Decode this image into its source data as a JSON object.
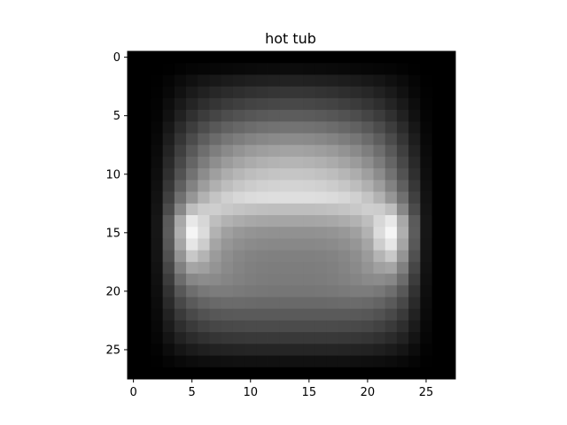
{
  "chart_data": {
    "type": "heatmap",
    "title": "hot tub",
    "colormap": "gray",
    "grid": false,
    "rows": 28,
    "cols": 28,
    "x_ticks": [
      0,
      5,
      10,
      15,
      20,
      25
    ],
    "y_ticks": [
      0,
      5,
      10,
      15,
      20,
      25
    ],
    "xlim": [
      -0.5,
      27.5
    ],
    "ylim": [
      27.5,
      -0.5
    ],
    "vmin": 0,
    "vmax": 255,
    "values": [
      [
        0,
        0,
        0,
        0,
        0,
        0,
        0,
        0,
        0,
        0,
        0,
        0,
        0,
        0,
        0,
        0,
        0,
        0,
        0,
        0,
        0,
        0,
        0,
        0,
        0,
        0,
        0,
        0
      ],
      [
        0,
        0,
        0,
        1,
        3,
        5,
        6,
        7,
        8,
        9,
        10,
        11,
        11,
        12,
        12,
        11,
        11,
        10,
        9,
        8,
        7,
        6,
        5,
        3,
        1,
        0,
        0,
        0
      ],
      [
        0,
        0,
        1,
        5,
        11,
        16,
        21,
        24,
        27,
        29,
        31,
        32,
        33,
        34,
        34,
        33,
        32,
        31,
        29,
        27,
        24,
        21,
        16,
        11,
        5,
        1,
        0,
        0
      ],
      [
        0,
        0,
        2,
        8,
        17,
        26,
        33,
        39,
        43,
        46,
        49,
        51,
        53,
        54,
        54,
        53,
        51,
        49,
        46,
        43,
        39,
        33,
        26,
        17,
        8,
        2,
        0,
        0
      ],
      [
        0,
        0,
        3,
        13,
        25,
        36,
        46,
        53,
        59,
        63,
        67,
        69,
        71,
        72,
        72,
        71,
        69,
        67,
        63,
        59,
        53,
        46,
        36,
        25,
        13,
        3,
        0,
        0
      ],
      [
        0,
        0,
        4,
        17,
        33,
        48,
        60,
        69,
        77,
        82,
        86,
        89,
        91,
        92,
        92,
        91,
        89,
        86,
        82,
        77,
        69,
        60,
        48,
        33,
        17,
        4,
        0,
        0
      ],
      [
        0,
        0,
        6,
        23,
        43,
        61,
        76,
        88,
        97,
        103,
        108,
        112,
        114,
        115,
        115,
        114,
        112,
        108,
        103,
        97,
        88,
        76,
        61,
        43,
        23,
        6,
        0,
        0
      ],
      [
        0,
        0,
        8,
        29,
        53,
        75,
        93,
        107,
        118,
        125,
        131,
        135,
        138,
        139,
        139,
        138,
        135,
        131,
        125,
        118,
        107,
        93,
        75,
        53,
        29,
        8,
        0,
        0
      ],
      [
        0,
        0,
        10,
        35,
        63,
        89,
        110,
        126,
        138,
        147,
        154,
        158,
        161,
        163,
        163,
        161,
        158,
        154,
        147,
        138,
        126,
        110,
        89,
        63,
        35,
        10,
        0,
        0
      ],
      [
        0,
        0,
        12,
        41,
        72,
        101,
        124,
        142,
        155,
        164,
        171,
        176,
        179,
        181,
        181,
        179,
        176,
        171,
        164,
        155,
        142,
        124,
        101,
        72,
        41,
        12,
        0,
        0
      ],
      [
        0,
        0,
        14,
        47,
        82,
        114,
        140,
        159,
        173,
        182,
        189,
        193,
        196,
        197,
        197,
        196,
        193,
        189,
        182,
        173,
        159,
        140,
        114,
        82,
        47,
        14,
        0,
        0
      ],
      [
        0,
        0,
        16,
        55,
        95,
        130,
        157,
        176,
        189,
        198,
        204,
        208,
        210,
        211,
        211,
        210,
        208,
        204,
        198,
        189,
        176,
        157,
        130,
        95,
        55,
        16,
        0,
        0
      ],
      [
        0,
        0,
        18,
        64,
        112,
        150,
        178,
        196,
        208,
        215,
        219,
        221,
        222,
        222,
        222,
        222,
        221,
        219,
        215,
        208,
        196,
        178,
        150,
        112,
        64,
        18,
        0,
        0
      ],
      [
        0,
        0,
        20,
        75,
        135,
        190,
        204,
        206,
        200,
        196,
        193,
        191,
        190,
        190,
        190,
        190,
        191,
        193,
        196,
        200,
        206,
        204,
        190,
        135,
        75,
        20,
        0,
        0
      ],
      [
        0,
        0,
        22,
        90,
        168,
        232,
        215,
        190,
        178,
        172,
        168,
        166,
        165,
        165,
        165,
        165,
        166,
        168,
        172,
        178,
        190,
        215,
        232,
        168,
        90,
        22,
        0,
        0
      ],
      [
        0,
        0,
        22,
        92,
        175,
        245,
        220,
        178,
        160,
        152,
        148,
        146,
        145,
        145,
        145,
        145,
        146,
        148,
        152,
        160,
        178,
        220,
        245,
        175,
        92,
        22,
        0,
        0
      ],
      [
        0,
        0,
        21,
        88,
        165,
        230,
        205,
        165,
        150,
        143,
        139,
        137,
        136,
        136,
        136,
        136,
        137,
        139,
        143,
        150,
        165,
        205,
        230,
        165,
        88,
        21,
        0,
        0
      ],
      [
        0,
        0,
        20,
        80,
        148,
        200,
        180,
        155,
        142,
        135,
        131,
        129,
        128,
        128,
        128,
        128,
        129,
        131,
        135,
        142,
        155,
        180,
        200,
        148,
        80,
        20,
        0,
        0
      ],
      [
        0,
        0,
        18,
        70,
        128,
        165,
        160,
        148,
        138,
        132,
        128,
        126,
        125,
        125,
        125,
        125,
        126,
        128,
        132,
        138,
        148,
        160,
        165,
        128,
        70,
        18,
        0,
        0
      ],
      [
        0,
        0,
        16,
        60,
        108,
        135,
        140,
        138,
        133,
        129,
        126,
        124,
        123,
        123,
        123,
        123,
        124,
        126,
        129,
        133,
        138,
        140,
        135,
        108,
        60,
        16,
        0,
        0
      ],
      [
        0,
        0,
        14,
        50,
        88,
        110,
        120,
        124,
        124,
        122,
        120,
        119,
        118,
        118,
        118,
        118,
        119,
        120,
        122,
        124,
        124,
        120,
        110,
        88,
        50,
        14,
        0,
        0
      ],
      [
        0,
        0,
        12,
        42,
        72,
        90,
        100,
        105,
        107,
        107,
        106,
        105,
        105,
        105,
        105,
        105,
        105,
        106,
        107,
        107,
        105,
        100,
        90,
        72,
        42,
        12,
        0,
        0
      ],
      [
        0,
        0,
        10,
        34,
        58,
        73,
        82,
        87,
        89,
        90,
        90,
        90,
        90,
        90,
        90,
        90,
        90,
        90,
        90,
        89,
        87,
        82,
        73,
        58,
        34,
        10,
        0,
        0
      ],
      [
        0,
        0,
        8,
        27,
        46,
        58,
        66,
        71,
        73,
        74,
        75,
        75,
        75,
        75,
        75,
        75,
        75,
        75,
        74,
        73,
        71,
        66,
        58,
        46,
        27,
        8,
        0,
        0
      ],
      [
        0,
        0,
        6,
        20,
        34,
        43,
        49,
        53,
        55,
        56,
        57,
        57,
        57,
        57,
        57,
        57,
        57,
        57,
        56,
        55,
        53,
        49,
        43,
        34,
        20,
        6,
        0,
        0
      ],
      [
        0,
        0,
        3,
        12,
        21,
        27,
        31,
        34,
        35,
        36,
        37,
        37,
        37,
        37,
        37,
        37,
        37,
        37,
        36,
        35,
        34,
        31,
        27,
        21,
        12,
        3,
        0,
        0
      ],
      [
        0,
        0,
        1,
        5,
        9,
        12,
        14,
        15,
        16,
        17,
        17,
        17,
        17,
        17,
        17,
        17,
        17,
        17,
        17,
        16,
        15,
        14,
        12,
        9,
        5,
        1,
        0,
        0
      ],
      [
        0,
        0,
        0,
        0,
        0,
        0,
        0,
        0,
        0,
        0,
        0,
        0,
        0,
        0,
        0,
        0,
        0,
        0,
        0,
        0,
        0,
        0,
        0,
        0,
        0,
        0,
        0,
        0
      ]
    ]
  }
}
